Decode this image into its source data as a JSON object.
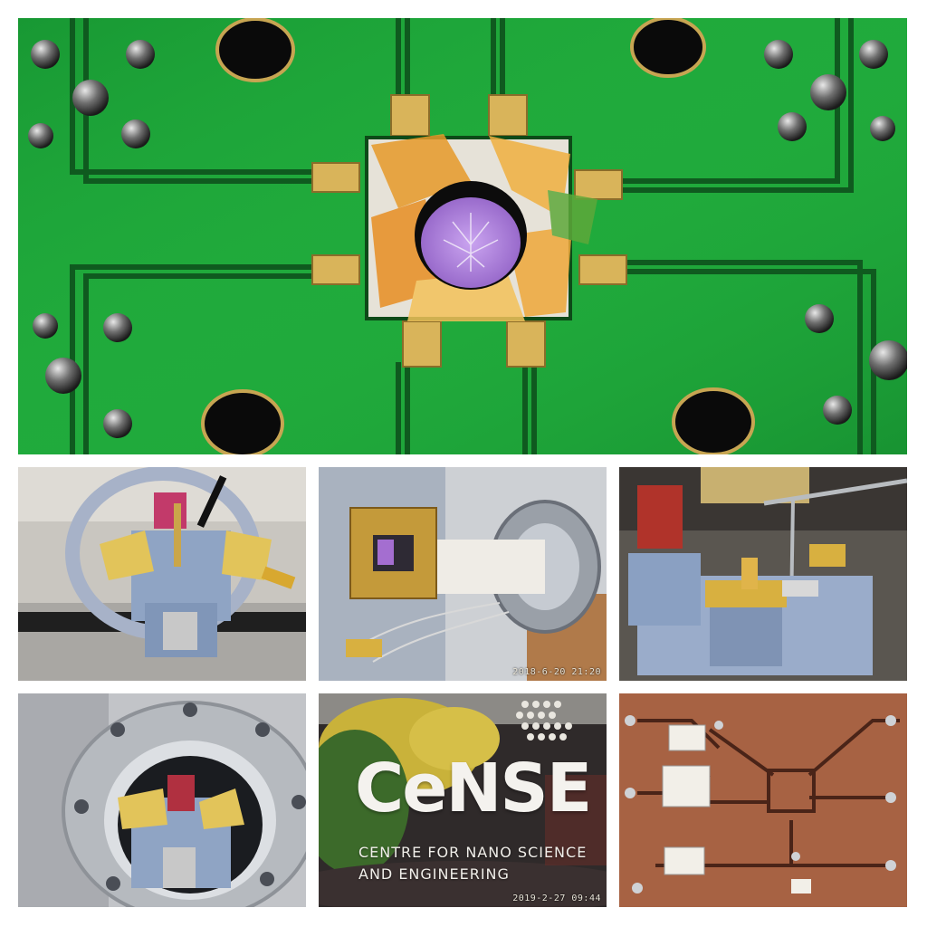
{
  "collage": {
    "background": "#ffffff",
    "panels": [
      {
        "id": "pcb-sample-closeup",
        "subject": "green PCB with purple chip sample under kapton tape, gold contact pads"
      },
      {
        "id": "sample-holder-front",
        "subject": "blue 3D-printed holder with gold SMA connectors"
      },
      {
        "id": "probe-stick",
        "subject": "chip carrier on probe rod with vacuum flange",
        "timestamp": "2018-6-20 21:20"
      },
      {
        "id": "holder-angle",
        "subject": "blue holder with probe arm and SMA connector"
      },
      {
        "id": "vacuum-port",
        "subject": "holder inside stainless vacuum flange"
      },
      {
        "id": "cense-sign",
        "logo_text": "CeNSE",
        "line1": "CENTRE FOR NANO SCIENCE",
        "line2": "AND ENGINEERING",
        "timestamp": "2019-2-27 09:44"
      },
      {
        "id": "rf-board",
        "subject": "copper RF board with mixer components"
      }
    ]
  },
  "colors": {
    "pcb_green": "#1fa83a",
    "trace_dark": "#0f5a1f",
    "gold": "#d9b45a",
    "chip_purple": "#b48be0",
    "holder_blue": "#8fa4c4",
    "steel": "#b9bcc2",
    "copper": "#b06a4a",
    "sign_dark": "#2f2a2a"
  }
}
